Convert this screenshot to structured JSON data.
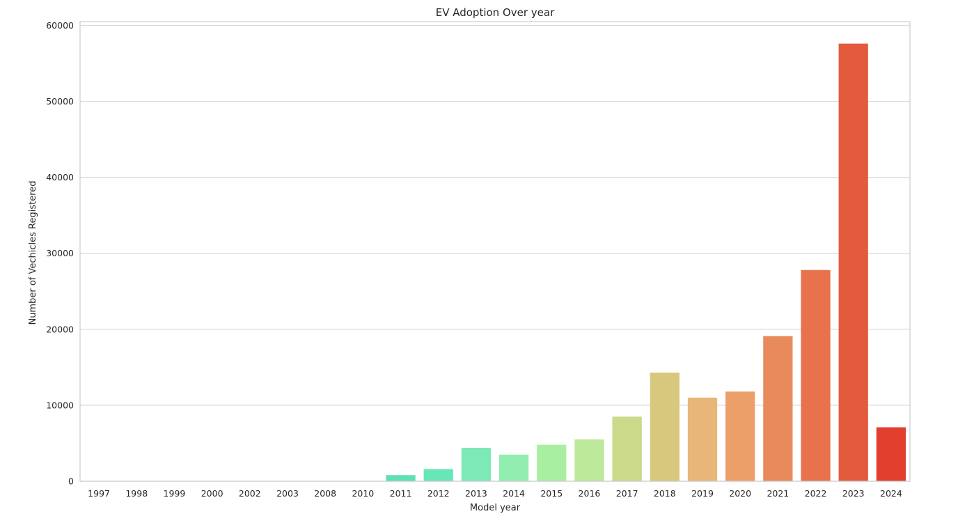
{
  "chart_data": {
    "type": "bar",
    "title": "EV Adoption Over year",
    "xlabel": "Model year",
    "ylabel": "Number of Vechicles Registered",
    "categories": [
      "1997",
      "1998",
      "1999",
      "2000",
      "2002",
      "2003",
      "2008",
      "2010",
      "2011",
      "2012",
      "2013",
      "2014",
      "2015",
      "2016",
      "2017",
      "2018",
      "2019",
      "2020",
      "2021",
      "2022",
      "2023",
      "2024"
    ],
    "values": [
      1,
      1,
      2,
      2,
      1,
      1,
      20,
      25,
      800,
      1600,
      4400,
      3500,
      4800,
      5500,
      8500,
      14300,
      11000,
      11800,
      19100,
      27800,
      57600,
      7100
    ],
    "colors": [
      "#1f3fe0",
      "#2060f0",
      "#2a80f5",
      "#30a0f5",
      "#30c0e8",
      "#30d8d0",
      "#40e4c0",
      "#50e8b8",
      "#5ce0b5",
      "#68e6b8",
      "#7de9b4",
      "#92eeb0",
      "#a8f0a0",
      "#bce99a",
      "#cad98a",
      "#d8c87e",
      "#e8b678",
      "#ed9f6a",
      "#e98a5c",
      "#e8724c",
      "#e45a3c",
      "#e23f2e"
    ],
    "ylim": [
      0,
      60500
    ],
    "yticks": [
      0,
      10000,
      20000,
      30000,
      40000,
      50000,
      60000
    ],
    "grid": true
  }
}
